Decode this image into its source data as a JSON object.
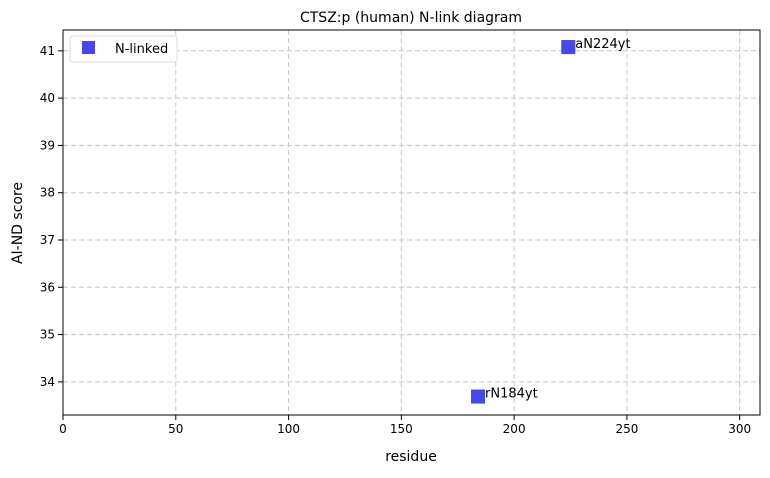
{
  "chart_data": {
    "type": "scatter",
    "title": "CTSZ:p (human) N-link diagram",
    "xlabel": "residue",
    "ylabel": "AI-ND score",
    "xlim": [
      0,
      309
    ],
    "ylim": [
      33.3,
      41.44
    ],
    "xticks": [
      0,
      50,
      100,
      150,
      200,
      250,
      300
    ],
    "yticks": [
      34,
      35,
      36,
      37,
      38,
      39,
      40,
      41
    ],
    "grid": true,
    "legend_position": "top-left",
    "series": [
      {
        "name": "N-linked",
        "color": "#3333ee",
        "marker": "square",
        "points": [
          {
            "x": 184,
            "y": 33.69,
            "label": "rN184yt"
          },
          {
            "x": 224,
            "y": 41.08,
            "label": "aN224yt"
          }
        ]
      }
    ]
  }
}
